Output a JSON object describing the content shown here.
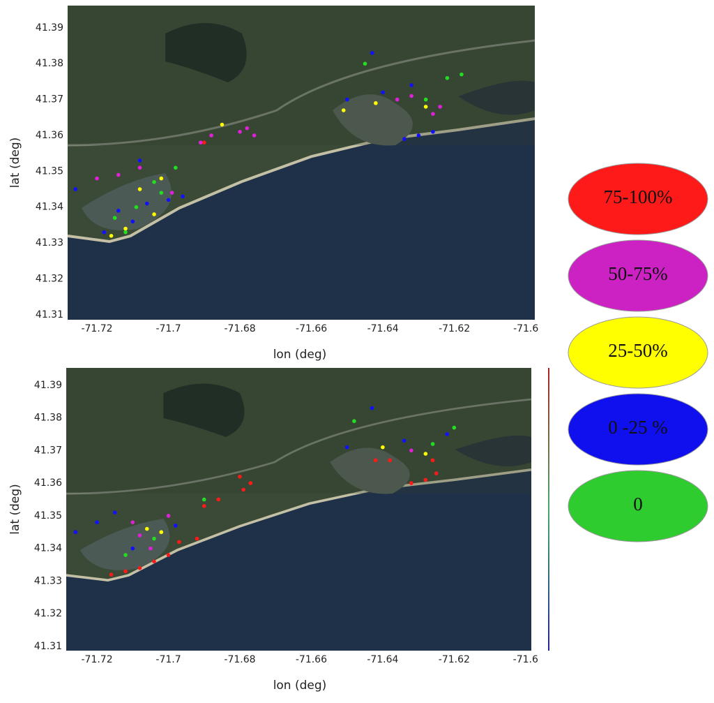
{
  "chart_data": [
    {
      "type": "scatter",
      "xlabel": "lon (deg)",
      "ylabel": "lat (deg)",
      "xlim": [
        -71.7282,
        -71.5975
      ],
      "ylim": [
        41.3086,
        41.3962
      ],
      "xticks": [
        -71.72,
        -71.7,
        -71.68,
        -71.66,
        -71.64,
        -71.62,
        -71.6
      ],
      "yticks": [
        41.31,
        41.32,
        41.33,
        41.34,
        41.35,
        41.36,
        41.37,
        41.38,
        41.39
      ],
      "series": [
        {
          "color": "#ff1a1a",
          "x": [
            -71.69
          ],
          "y": [
            41.358
          ]
        },
        {
          "color": "#e020d8",
          "x": [
            -71.72,
            -71.714,
            -71.708,
            -71.699,
            -71.678,
            -71.676,
            -71.68,
            -71.691,
            -71.688,
            -71.636,
            -71.626,
            -71.624,
            -71.632
          ],
          "y": [
            41.348,
            41.349,
            41.351,
            41.344,
            41.362,
            41.36,
            41.361,
            41.358,
            41.36,
            41.37,
            41.366,
            41.368,
            41.371
          ]
        },
        {
          "color": "#ffff00",
          "x": [
            -71.712,
            -71.708,
            -71.702,
            -71.716,
            -71.642,
            -71.628,
            -71.651,
            -71.685,
            -71.704
          ],
          "y": [
            41.334,
            41.345,
            41.348,
            41.332,
            41.369,
            41.368,
            41.367,
            41.363,
            41.338
          ]
        },
        {
          "color": "#1010ff",
          "x": [
            -71.726,
            -71.714,
            -71.71,
            -71.706,
            -71.7,
            -71.696,
            -71.718,
            -71.63,
            -71.626,
            -71.634,
            -71.64,
            -71.632,
            -71.65,
            -71.643,
            -71.708
          ],
          "y": [
            41.345,
            41.339,
            41.336,
            41.341,
            41.342,
            41.343,
            41.333,
            41.36,
            41.361,
            41.359,
            41.372,
            41.374,
            41.37,
            41.383,
            41.353
          ]
        },
        {
          "color": "#22dd22",
          "x": [
            -71.704,
            -71.709,
            -71.715,
            -71.698,
            -71.622,
            -71.618,
            -71.628,
            -71.645,
            -71.702,
            -71.712
          ],
          "y": [
            41.347,
            41.34,
            41.337,
            41.351,
            41.376,
            41.377,
            41.37,
            41.38,
            41.344,
            41.333
          ]
        }
      ]
    },
    {
      "type": "scatter",
      "xlabel": "lon (deg)",
      "ylabel": "lat (deg)",
      "xlim": [
        -71.7286,
        -71.5984
      ],
      "ylim": [
        41.3087,
        41.3953
      ],
      "xticks": [
        -71.72,
        -71.7,
        -71.68,
        -71.66,
        -71.64,
        -71.62,
        -71.6
      ],
      "yticks": [
        41.31,
        41.32,
        41.33,
        41.34,
        41.35,
        41.36,
        41.37,
        41.38,
        41.39
      ],
      "series": [
        {
          "color": "#ff1a1a",
          "x": [
            -71.716,
            -71.712,
            -71.708,
            -71.704,
            -71.7,
            -71.697,
            -71.692,
            -71.69,
            -71.686,
            -71.68,
            -71.677,
            -71.679,
            -71.632,
            -71.628,
            -71.625,
            -71.642,
            -71.638,
            -71.626
          ],
          "y": [
            41.332,
            41.333,
            41.334,
            41.336,
            41.338,
            41.342,
            41.343,
            41.353,
            41.355,
            41.362,
            41.36,
            41.358,
            41.36,
            41.361,
            41.363,
            41.367,
            41.367,
            41.367
          ]
        },
        {
          "color": "#e020d8",
          "x": [
            -71.71,
            -71.708,
            -71.705,
            -71.7,
            -71.632
          ],
          "y": [
            41.348,
            41.344,
            41.34,
            41.35,
            41.37
          ]
        },
        {
          "color": "#ffff00",
          "x": [
            -71.706,
            -71.702,
            -71.64,
            -71.628
          ],
          "y": [
            41.346,
            41.345,
            41.371,
            41.369
          ]
        },
        {
          "color": "#1010ff",
          "x": [
            -71.726,
            -71.72,
            -71.715,
            -71.71,
            -71.698,
            -71.65,
            -71.643,
            -71.634,
            -71.622
          ],
          "y": [
            41.345,
            41.348,
            41.351,
            41.34,
            41.347,
            41.371,
            41.383,
            41.373,
            41.375
          ]
        },
        {
          "color": "#22dd22",
          "x": [
            -71.712,
            -71.704,
            -71.69,
            -71.648,
            -71.62,
            -71.626
          ],
          "y": [
            41.338,
            41.343,
            41.355,
            41.379,
            41.377,
            41.372
          ]
        }
      ]
    }
  ],
  "legend": [
    {
      "label": "75-100%",
      "color": "#ff1a1a"
    },
    {
      "label": "50-75%",
      "color": "#cc22c4"
    },
    {
      "label": "25-50%",
      "color": "#ffff00"
    },
    {
      "label": "0 -25 %",
      "color": "#1010ee"
    },
    {
      "label": "0",
      "color": "#2ecc2e"
    }
  ]
}
